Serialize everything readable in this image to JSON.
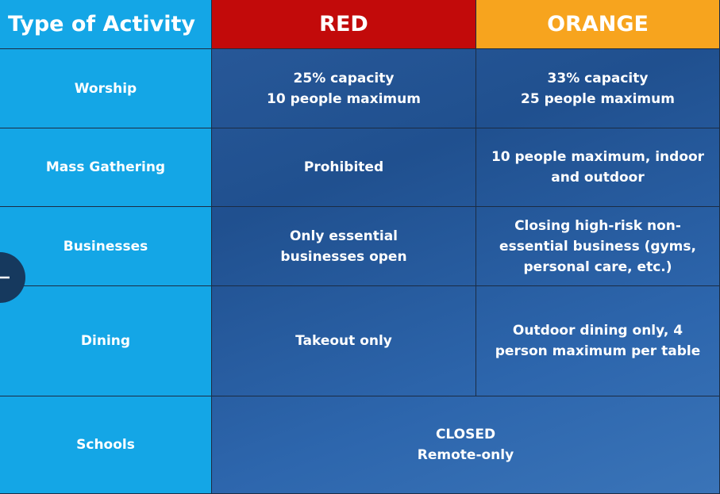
{
  "header": [
    "Type of Activity",
    "RED",
    "ORANGE"
  ],
  "rows": [
    {
      "activity": "Worship",
      "cells": [
        [
          "25% capacity",
          "10 people maximum"
        ],
        [
          "33% capacity",
          "25 people maximum"
        ]
      ]
    },
    {
      "activity": "Mass Gathering",
      "cells": [
        [
          "Prohibited"
        ],
        [
          "10 people maximum, indoor",
          "and outdoor"
        ]
      ]
    },
    {
      "activity": "Businesses",
      "cells": [
        [
          "Only essential",
          "businesses open"
        ],
        [
          "Closing high-risk non-",
          "essential business (gyms,",
          "personal care,  etc.)"
        ]
      ]
    },
    {
      "activity": "Dining",
      "cells": [
        [
          "Takeout only"
        ],
        [
          "Outdoor dining only, 4",
          "person maximum per table"
        ]
      ]
    },
    {
      "activity": "Schools",
      "cells": [
        [
          "CLOSED",
          "Remote-only"
        ]
      ]
    }
  ]
}
